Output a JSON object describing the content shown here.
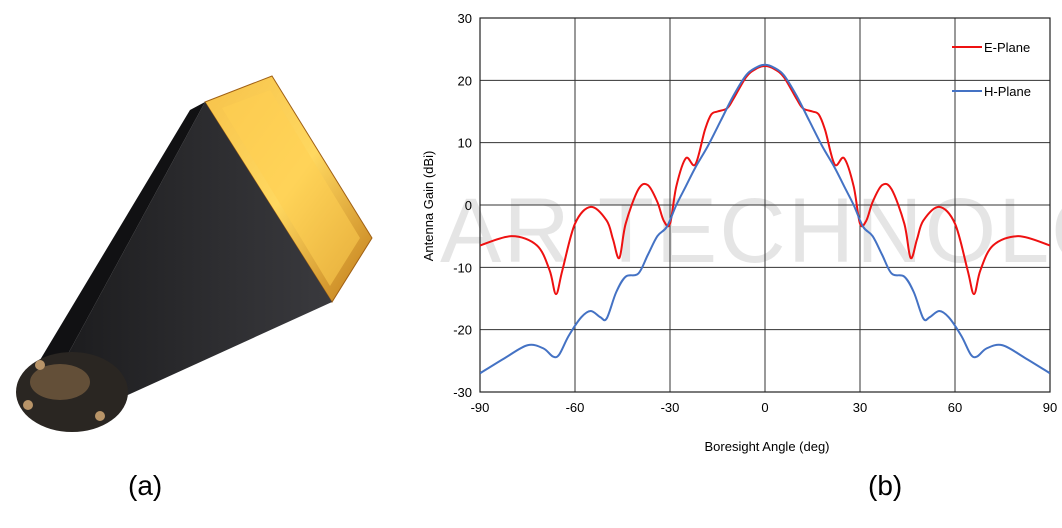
{
  "panels": {
    "a_label": "(a)",
    "b_label": "(b)"
  },
  "photo": {
    "subject": "horn-antenna",
    "flare_color": "#2a2a2c",
    "aperture_color": "#e0a22c"
  },
  "watermark": "AR TECHNOLOG",
  "chart_data": {
    "type": "line",
    "xlabel": "Boresight Angle (deg)",
    "ylabel": "Antenna Gain (dBi)",
    "xlim": [
      -90,
      90
    ],
    "ylim": [
      -30,
      30
    ],
    "xticks": [
      -90,
      -60,
      -30,
      0,
      30,
      60,
      90
    ],
    "yticks": [
      -30,
      -20,
      -10,
      0,
      10,
      20,
      30
    ],
    "grid": true,
    "legend_position": "top-right",
    "series": [
      {
        "name": "E-Plane",
        "color": "#ee1111",
        "x": [
          -90,
          -80,
          -72,
          -68,
          -66,
          -64,
          -60,
          -55,
          -50,
          -48,
          -46,
          -44,
          -40,
          -37,
          -34,
          -32,
          -30,
          -28,
          -25,
          -22,
          -19,
          -17,
          -15,
          -12,
          -10,
          -6,
          -3,
          0,
          3,
          6,
          10,
          12,
          15,
          17,
          19,
          22,
          25,
          28,
          30,
          32,
          34,
          37,
          40,
          44,
          46,
          48,
          50,
          55,
          60,
          64,
          66,
          68,
          72,
          80,
          90
        ],
        "y": [
          -6.5,
          -5.0,
          -6.5,
          -10.5,
          -14.3,
          -10.5,
          -3.0,
          -0.3,
          -2.5,
          -5.5,
          -8.5,
          -3.0,
          2.5,
          3.2,
          0.5,
          -2.5,
          -3.0,
          3.0,
          7.5,
          6.5,
          12.0,
          14.5,
          15.0,
          15.5,
          17.0,
          20.5,
          21.8,
          22.3,
          21.8,
          20.5,
          17.0,
          15.5,
          15.0,
          14.5,
          12.0,
          6.5,
          7.5,
          3.0,
          -3.0,
          -2.5,
          0.5,
          3.2,
          2.5,
          -3.0,
          -8.5,
          -5.5,
          -2.5,
          -0.3,
          -3.0,
          -10.5,
          -14.3,
          -10.5,
          -6.5,
          -5.0,
          -6.5
        ]
      },
      {
        "name": "H-Plane",
        "color": "#4472c4",
        "x": [
          -90,
          -82,
          -75,
          -70,
          -67,
          -65,
          -62,
          -58,
          -55,
          -52,
          -50,
          -47,
          -44,
          -40,
          -37,
          -34,
          -31,
          -28,
          -25,
          -22,
          -18,
          -14,
          -10,
          -6,
          -3,
          0,
          3,
          6,
          10,
          14,
          18,
          22,
          25,
          28,
          31,
          34,
          37,
          40,
          44,
          47,
          50,
          52,
          55,
          58,
          62,
          65,
          67,
          70,
          75,
          82,
          90
        ],
        "y": [
          -27.0,
          -24.5,
          -22.5,
          -23.0,
          -24.3,
          -24.0,
          -21.0,
          -18.0,
          -17.0,
          -18.0,
          -18.2,
          -14.0,
          -11.5,
          -11.0,
          -8.0,
          -5.0,
          -3.5,
          0.0,
          3.0,
          6.0,
          9.5,
          13.5,
          17.5,
          20.8,
          22.0,
          22.5,
          22.0,
          20.8,
          17.5,
          13.5,
          9.5,
          6.0,
          3.0,
          0.0,
          -3.5,
          -5.0,
          -8.0,
          -11.0,
          -11.5,
          -14.0,
          -18.2,
          -18.0,
          -17.0,
          -18.0,
          -21.0,
          -24.0,
          -24.3,
          -23.0,
          -22.5,
          -24.5,
          -27.0
        ]
      }
    ]
  }
}
